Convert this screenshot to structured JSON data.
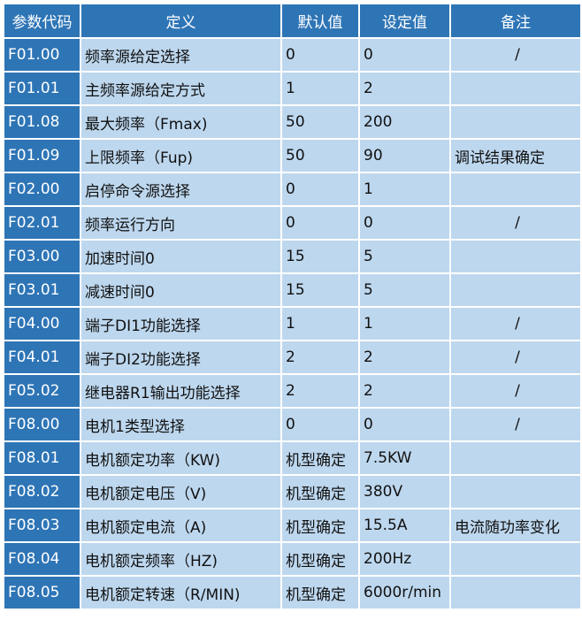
{
  "headers": [
    "参数代码",
    "定义",
    "默认值",
    "设定值",
    "备注"
  ],
  "colors": {
    "header_bg": "#2E75B6",
    "cell_bg": "#BDD7EE",
    "border": "#FFFFFF"
  },
  "rows": [
    {
      "code": "F01.00",
      "definition": "频率源给定选择",
      "default": "0",
      "setting": "0",
      "note": "/"
    },
    {
      "code": "F01.01",
      "definition": "主频率源给定方式",
      "default": "1",
      "setting": "2",
      "note": ""
    },
    {
      "code": "F01.08",
      "definition": "最大频率（Fmax)",
      "default": "50",
      "setting": "200",
      "note": ""
    },
    {
      "code": "F01.09",
      "definition": "上限频率（Fup)",
      "default": "50",
      "setting": "90",
      "note": "调试结果确定"
    },
    {
      "code": "F02.00",
      "definition": "启停命令源选择",
      "default": "0",
      "setting": "1",
      "note": ""
    },
    {
      "code": "F02.01",
      "definition": "频率运行方向",
      "default": "0",
      "setting": "0",
      "note": "/"
    },
    {
      "code": "F03.00",
      "definition": "加速时间0",
      "default": "15",
      "setting": "5",
      "note": ""
    },
    {
      "code": "F03.01",
      "definition": "减速时间0",
      "default": "15",
      "setting": "5",
      "note": ""
    },
    {
      "code": "F04.00",
      "definition": "端子DI1功能选择",
      "default": "1",
      "setting": "1",
      "note": "/"
    },
    {
      "code": "F04.01",
      "definition": "端子DI2功能选择",
      "default": "2",
      "setting": "2",
      "note": "/"
    },
    {
      "code": "F05.02",
      "definition": "继电器R1输出功能选择",
      "default": "2",
      "setting": "2",
      "note": "/"
    },
    {
      "code": "F08.00",
      "definition": "电机1类型选择",
      "default": "0",
      "setting": "0",
      "note": "/"
    },
    {
      "code": "F08.01",
      "definition": "电机额定功率（KW)",
      "default": "机型确定",
      "setting": "7.5KW",
      "note": ""
    },
    {
      "code": "F08.02",
      "definition": "电机额定电压（V)",
      "default": "机型确定",
      "setting": "380V",
      "note": ""
    },
    {
      "code": "F08.03",
      "definition": "电机额定电流（A)",
      "default": "机型确定",
      "setting": "15.5A",
      "note": "电流随功率变化"
    },
    {
      "code": "F08.04",
      "definition": "电机额定频率（HZ)",
      "default": "机型确定",
      "setting": "200Hz",
      "note": ""
    },
    {
      "code": "F08.05",
      "definition": "电机额定转速（R/MIN)",
      "default": "机型确定",
      "setting": "6000r/min",
      "note": ""
    }
  ]
}
